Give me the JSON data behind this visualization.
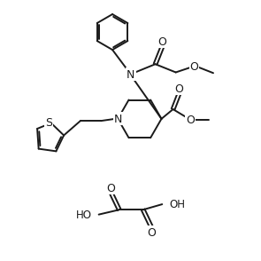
{
  "bg_color": "#ffffff",
  "line_color": "#1a1a1a",
  "line_width": 1.4,
  "font_size": 8.5,
  "font_family": "DejaVu Sans"
}
